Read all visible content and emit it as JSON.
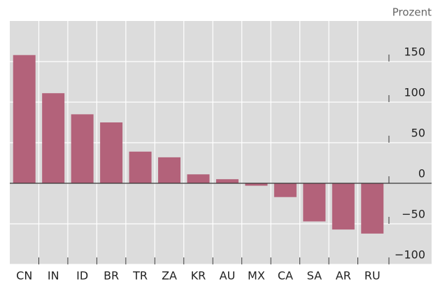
{
  "chart_data": {
    "type": "bar",
    "y_axis_label": "Prozent",
    "categories": [
      "CN",
      "IN",
      "ID",
      "BR",
      "TR",
      "ZA",
      "KR",
      "AU",
      "MX",
      "CA",
      "SA",
      "AR",
      "RU"
    ],
    "values": [
      158,
      111,
      85,
      75,
      39,
      32,
      11,
      5,
      -3,
      -17,
      -47,
      -57,
      -62
    ],
    "color": "#b3627a",
    "ylim": [
      -100,
      200
    ],
    "yticks": [
      {
        "value": -100,
        "label": "−100"
      },
      {
        "value": -50,
        "label": "−50"
      },
      0,
      50,
      100,
      150
    ],
    "grid": true
  }
}
